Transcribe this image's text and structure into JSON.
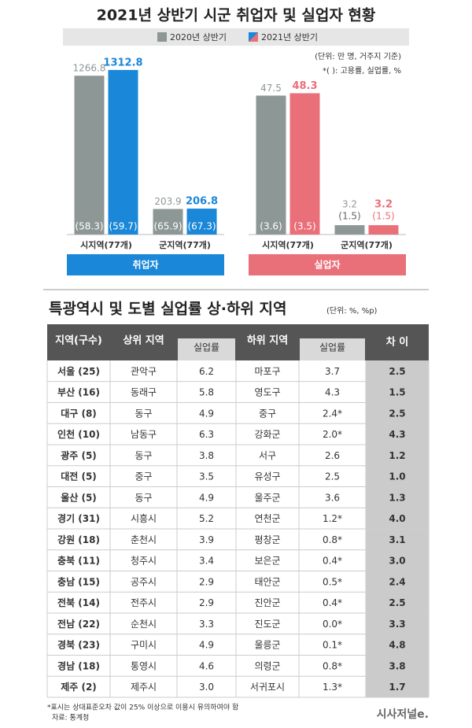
{
  "title": "2021년 상반기 시군 취업자 및 실업자 현황",
  "unit_note": "(단위: 만 명, 거주지 기준)",
  "rate_note": "*( ): 고용률, 실업률, %",
  "chart_data": [
    {
      "type": "bar",
      "group_label": "취업자",
      "categories": [
        "시지역(77개)",
        "군지역(77개)"
      ],
      "series": [
        {
          "name": "2020년 상반기",
          "color": "#8d9796",
          "values": [
            1266.8,
            203.9
          ],
          "rate_labels": [
            "(58.3)",
            "(65.9)"
          ]
        },
        {
          "name": "2021년 상반기",
          "color": "#1a87d8",
          "values": [
            1312.8,
            206.8
          ],
          "rate_labels": [
            "(59.7)",
            "(67.3)"
          ]
        }
      ],
      "ylim": [
        0,
        1400
      ]
    },
    {
      "type": "bar",
      "group_label": "실업자",
      "categories": [
        "시지역(77개)",
        "군지역(77개)"
      ],
      "series": [
        {
          "name": "2020년 상반기",
          "color": "#8d9796",
          "values": [
            47.5,
            3.2
          ],
          "rate_labels": [
            "(3.6)",
            "(1.5)"
          ]
        },
        {
          "name": "2021년 상반기",
          "color": "#e96f79",
          "values": [
            48.3,
            3.2
          ],
          "rate_labels": [
            "(3.5)",
            "(1.5)"
          ]
        }
      ],
      "ylim": [
        0,
        60
      ]
    }
  ],
  "table": {
    "title": "특광역시 및 도별 실업률 상·하위 지역",
    "unit": "(단위: %, %p)",
    "header": [
      "지역(구수)",
      "상위 지역",
      "실업률",
      "하위 지역",
      "실업률",
      "차 이"
    ],
    "rows": [
      [
        "서울 (25)",
        "관악구",
        "6.2",
        "마포구",
        "3.7",
        "2.5"
      ],
      [
        "부산 (16)",
        "동래구",
        "5.8",
        "영도구",
        "4.3",
        "1.5"
      ],
      [
        "대구 (8)",
        "동구",
        "4.9",
        "중구",
        "2.4*",
        "2.5"
      ],
      [
        "인천 (10)",
        "남동구",
        "6.3",
        "강화군",
        "2.0*",
        "4.3"
      ],
      [
        "광주 (5)",
        "동구",
        "3.8",
        "서구",
        "2.6",
        "1.2"
      ],
      [
        "대전 (5)",
        "중구",
        "3.5",
        "유성구",
        "2.5",
        "1.0"
      ],
      [
        "울산 (5)",
        "동구",
        "4.9",
        "울주군",
        "3.6",
        "1.3"
      ],
      [
        "경기 (31)",
        "시흥시",
        "5.2",
        "연천군",
        "1.2*",
        "4.0"
      ],
      [
        "강원 (18)",
        "춘천시",
        "3.9",
        "평창군",
        "0.8*",
        "3.1"
      ],
      [
        "충북 (11)",
        "청주시",
        "3.4",
        "보은군",
        "0.4*",
        "3.0"
      ],
      [
        "충남 (15)",
        "공주시",
        "2.9",
        "태안군",
        "0.5*",
        "2.4"
      ],
      [
        "전북 (14)",
        "전주시",
        "2.9",
        "진안군",
        "0.4*",
        "2.5"
      ],
      [
        "전남 (22)",
        "순천시",
        "3.3",
        "진도군",
        "0.0*",
        "3.3"
      ],
      [
        "경북 (23)",
        "구미시",
        "4.9",
        "울릉군",
        "0.1*",
        "4.8"
      ],
      [
        "경남 (18)",
        "통영시",
        "4.6",
        "의령군",
        "0.8*",
        "3.8"
      ],
      [
        "제주 (2)",
        "제주시",
        "3.0",
        "서귀포시",
        "1.3*",
        "1.7"
      ]
    ]
  },
  "footnote": "*표시는 상대표준오차 값이 25% 이상으로 이용시 유의하여야 함",
  "source": "자료: 통계청",
  "logo": "시사저널e."
}
